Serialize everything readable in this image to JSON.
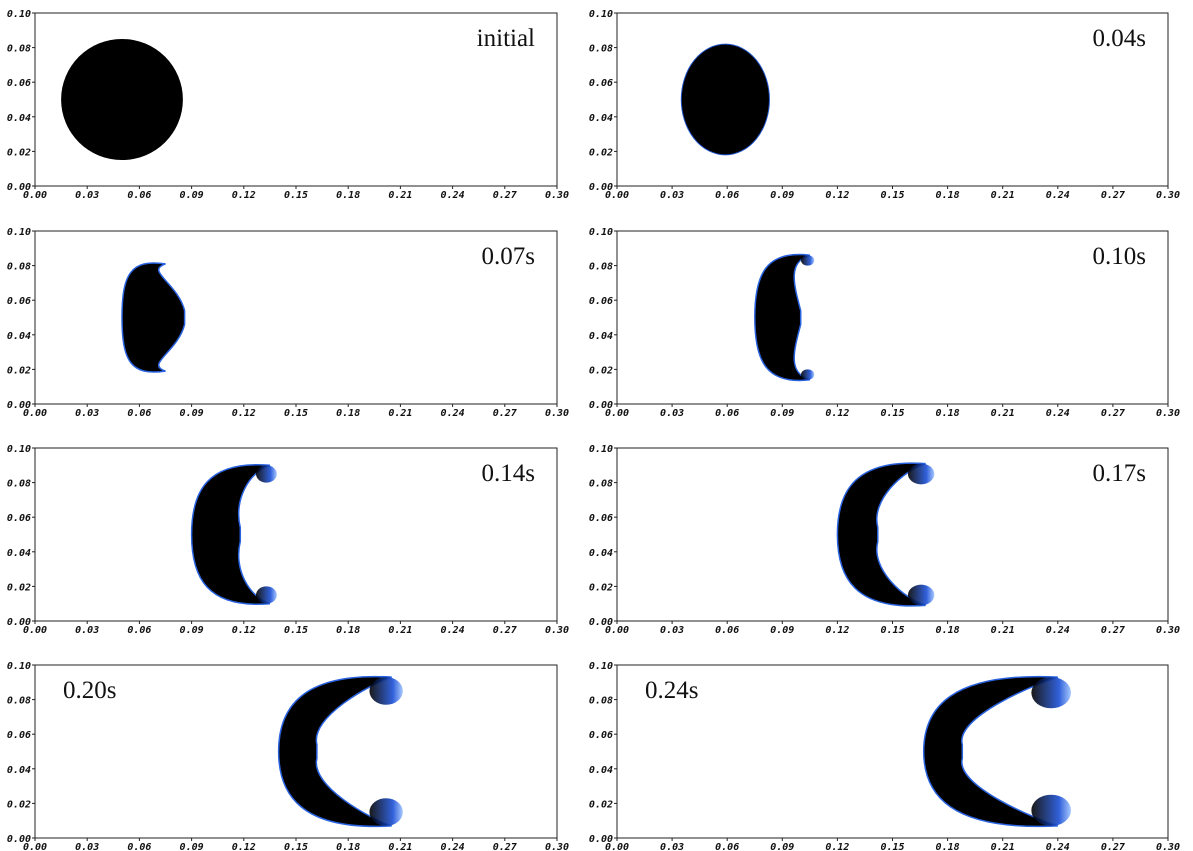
{
  "axes": {
    "xlim": [
      0,
      0.3
    ],
    "ylim": [
      0,
      0.1
    ],
    "xticks": [
      {
        "value": 0,
        "label": "0.00"
      },
      {
        "value": 0.03,
        "label": "0.03"
      },
      {
        "value": 0.06,
        "label": "0.06"
      },
      {
        "value": 0.09,
        "label": "0.09"
      },
      {
        "value": 0.12,
        "label": "0.12"
      },
      {
        "value": 0.15,
        "label": "0.15"
      },
      {
        "value": 0.18,
        "label": "0.18"
      },
      {
        "value": 0.21,
        "label": "0.21"
      },
      {
        "value": 0.24,
        "label": "0.24"
      },
      {
        "value": 0.27,
        "label": "0.27"
      },
      {
        "value": 0.3,
        "label": "0.30"
      }
    ],
    "yticks": [
      {
        "value": 0,
        "label": "0.00"
      },
      {
        "value": 0.02,
        "label": "0.02"
      },
      {
        "value": 0.04,
        "label": "0.04"
      },
      {
        "value": 0.06,
        "label": "0.06"
      },
      {
        "value": 0.08,
        "label": "0.08"
      },
      {
        "value": 0.1,
        "label": "0.10"
      }
    ]
  },
  "panels": [
    {
      "label": "initial"
    },
    {
      "label": "0.04s"
    },
    {
      "label": "0.07s"
    },
    {
      "label": "0.10s"
    },
    {
      "label": "0.14s"
    },
    {
      "label": "0.17s"
    },
    {
      "label": "0.20s"
    },
    {
      "label": "0.24s"
    }
  ]
}
